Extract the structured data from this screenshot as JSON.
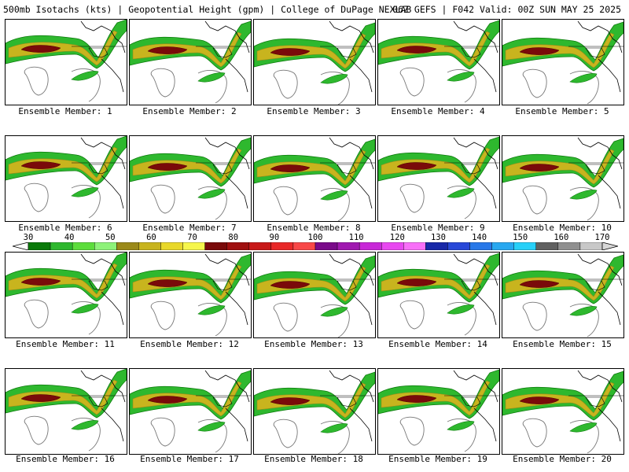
{
  "header": {
    "left": "500mb Isotachs (kts) | Geopotential Height (gpm) | College of DuPage NEXLAB",
    "right": "06Z GEFS | F042 Valid: 00Z SUN MAY 25 2025"
  },
  "members": [
    {
      "label": "Ensemble Member: 1"
    },
    {
      "label": "Ensemble Member: 2"
    },
    {
      "label": "Ensemble Member: 3"
    },
    {
      "label": "Ensemble Member: 4"
    },
    {
      "label": "Ensemble Member: 5"
    },
    {
      "label": "Ensemble Member: 6"
    },
    {
      "label": "Ensemble Member: 7"
    },
    {
      "label": "Ensemble Member: 8"
    },
    {
      "label": "Ensemble Member: 9"
    },
    {
      "label": "Ensemble Member: 10"
    },
    {
      "label": "Ensemble Member: 11"
    },
    {
      "label": "Ensemble Member: 12"
    },
    {
      "label": "Ensemble Member: 13"
    },
    {
      "label": "Ensemble Member: 14"
    },
    {
      "label": "Ensemble Member: 15"
    },
    {
      "label": "Ensemble Member: 16"
    },
    {
      "label": "Ensemble Member: 17"
    },
    {
      "label": "Ensemble Member: 18"
    },
    {
      "label": "Ensemble Member: 19"
    },
    {
      "label": "Ensemble Member: 20"
    }
  ],
  "colorbar": {
    "ticks": [
      "30",
      "40",
      "50",
      "60",
      "70",
      "80",
      "90",
      "100",
      "110",
      "120",
      "130",
      "140",
      "150",
      "160",
      "170"
    ],
    "colors": [
      "#0a7a0a",
      "#2eb82e",
      "#5cdd3c",
      "#8ef27a",
      "#9b8a1a",
      "#c8b41e",
      "#e8d82a",
      "#f6f64c",
      "#7a0a0a",
      "#a01010",
      "#c81818",
      "#e82828",
      "#f84848",
      "#7a0a8a",
      "#a018b0",
      "#c828d8",
      "#e848f0",
      "#f870f8",
      "#1828a8",
      "#2848d8",
      "#2878e8",
      "#28a8f0",
      "#28d0f8",
      "#606060",
      "#909090",
      "#c8c8c8"
    ]
  }
}
